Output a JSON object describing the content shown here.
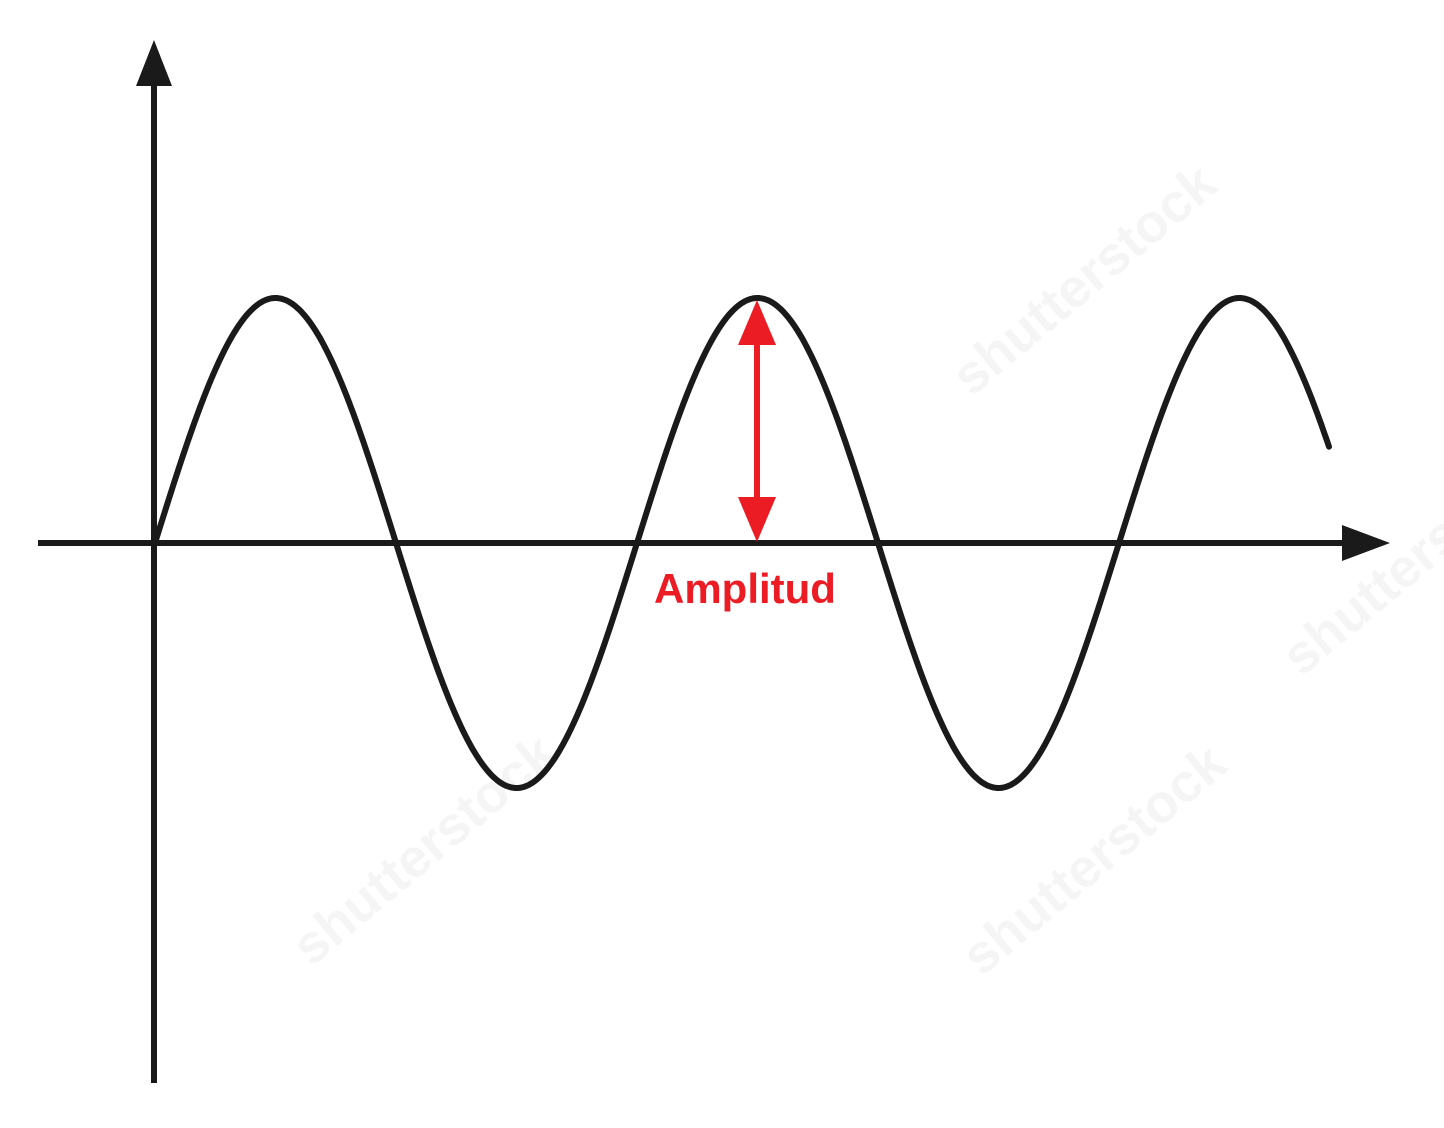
{
  "diagram": {
    "label": "Amplitud",
    "label_color": "#ec1c24",
    "wave_color": "#1a1a1a",
    "axis_color": "#1a1a1a"
  },
  "watermark": {
    "text": "shutterstock"
  }
}
